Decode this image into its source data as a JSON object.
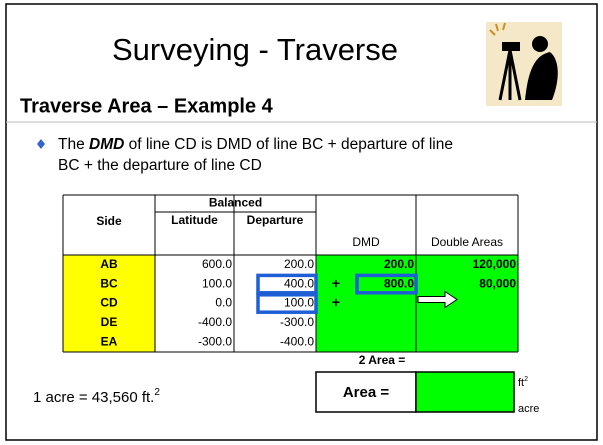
{
  "header": {
    "title": "Surveying - Traverse",
    "subtitle": "Traverse Area – Example 4"
  },
  "bullet": {
    "lead": "The ",
    "emphasis": "DMD",
    "rest": " of line CD is DMD of line BC + departure of line",
    "line2": "BC + the departure of line CD"
  },
  "table": {
    "group_header": "Balanced",
    "columns": [
      "Side",
      "Latitude",
      "Departure",
      "DMD",
      "Double Areas"
    ],
    "rows": [
      [
        "AB",
        "600.0",
        "200.0",
        "200.0",
        "120,000"
      ],
      [
        "BC",
        "100.0",
        "400.0",
        "800.0",
        "80,000"
      ],
      [
        "CD",
        "0.0",
        "100.0"
      ],
      [
        "DE",
        "-400.0",
        "-300.0"
      ],
      [
        "EA",
        "-300.0",
        "-400.0"
      ]
    ],
    "operators": [
      "+",
      "+"
    ]
  },
  "area": {
    "two_area_label": "2 Area =",
    "area_label": "Area =",
    "unit_ft": "ft",
    "unit_ft_sup": "2",
    "unit_acre": "acre"
  },
  "conversion": {
    "text": "1 acre = 43,560 ft.",
    "sup": "2"
  }
}
